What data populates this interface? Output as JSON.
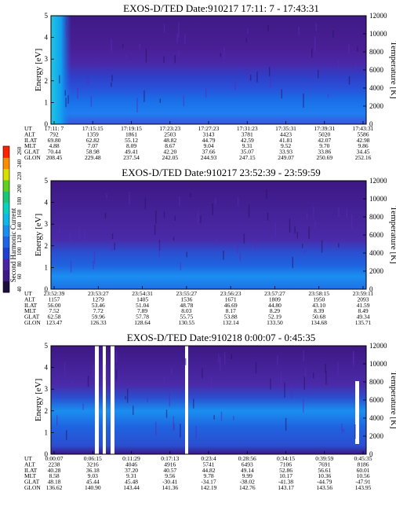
{
  "colorbar": {
    "label": "Second Harmonic Current",
    "ticks": [
      "40",
      "60",
      "80",
      "100",
      "120",
      "140",
      "160",
      "180",
      "200",
      "220",
      "240",
      "260"
    ],
    "colors": [
      "#1a0e3a",
      "#3b1a85",
      "#4a23a8",
      "#1f3fd1",
      "#1f63e8",
      "#1a8ff0",
      "#10b8e8",
      "#0ad1c0",
      "#18c878",
      "#5fd020",
      "#d8e000",
      "#ff8c00",
      "#ff2000"
    ]
  },
  "chart_data": [
    {
      "type": "heatmap",
      "title": "EXOS-D/TED   Date:910217  17:11: 7 - 17:43:31",
      "ylabel": "Energy [eV]",
      "y2label": "Temperature [K]",
      "ylim": [
        0,
        5
      ],
      "y2lim": [
        0,
        12000
      ],
      "yticks": [
        "0",
        "1",
        "2",
        "3",
        "4",
        "5"
      ],
      "y2ticks": [
        "0",
        "2000",
        "4000",
        "6000",
        "8000",
        "10000",
        "12000"
      ],
      "gaps": [],
      "ephemeris": {
        "row_labels": [
          "UT",
          "ALT",
          "ILAT",
          "MLT",
          "GLAT",
          "GLON"
        ],
        "columns": [
          [
            "17:11: 7",
            "792",
            "69.80",
            "4.88",
            "70.44",
            "208.45"
          ],
          [
            "17:15:15",
            "1359",
            "62.82",
            "7.07",
            "58.98",
            "229.48"
          ],
          [
            "17:19:15",
            "1861",
            "55.12",
            "8.09",
            "49.41",
            "237.54"
          ],
          [
            "17:23:23",
            "2503",
            "48.82",
            "8.67",
            "42.20",
            "242.05"
          ],
          [
            "17:27:23",
            "3143",
            "44.79",
            "9.04",
            "37.66",
            "244.93"
          ],
          [
            "17:31:23",
            "3781",
            "42.59",
            "9.31",
            "35.07",
            "247.15"
          ],
          [
            "17:35:31",
            "4423",
            "41.81",
            "9.52",
            "33.93",
            "249.07"
          ],
          [
            "17:39:31",
            "5020",
            "42.07",
            "9.70",
            "33.86",
            "250.69"
          ],
          [
            "17:43:31",
            "5586",
            "42.98",
            "9.86",
            "34.45",
            "252.16"
          ]
        ]
      }
    },
    {
      "type": "heatmap",
      "title": "EXOS-D/TED   Date:910217  23:52:39 - 23:59:59",
      "ylabel": "Energy [eV]",
      "y2label": "Temperature [K]",
      "ylim": [
        0,
        5
      ],
      "y2lim": [
        0,
        12000
      ],
      "yticks": [
        "0",
        "1",
        "2",
        "3",
        "4",
        "5"
      ],
      "y2ticks": [
        "0",
        "2000",
        "4000",
        "6000",
        "8000",
        "10000",
        "12000"
      ],
      "gaps": [],
      "ephemeris": {
        "row_labels": [
          "UT",
          "ALT",
          "ILAT",
          "MLT",
          "GLAT",
          "GLON"
        ],
        "columns": [
          [
            "23:52:39",
            "1157",
            "56.00",
            "7.52",
            "62.58",
            "123.47"
          ],
          [
            "23:53:27",
            "1279",
            "53.46",
            "7.72",
            "59.96",
            "126.33"
          ],
          [
            "23:54:31",
            "1405",
            "51.04",
            "7.89",
            "57.78",
            "128.64"
          ],
          [
            "23:55:27",
            "1536",
            "48.78",
            "8.03",
            "55.75",
            "130.55"
          ],
          [
            "23:56:23",
            "1671",
            "46.69",
            "8.17",
            "53.88",
            "132.14"
          ],
          [
            "23:57:27",
            "1809",
            "44.80",
            "8.29",
            "52.19",
            "133.50"
          ],
          [
            "23:58:15",
            "1950",
            "43.10",
            "8.39",
            "50.68",
            "134.68"
          ],
          [
            "23:59:11",
            "2093",
            "41.59",
            "8.49",
            "49.34",
            "135.71"
          ]
        ]
      }
    },
    {
      "type": "heatmap",
      "title": "EXOS-D/TED   Date:910218  0:00:07 - 0:45:35",
      "ylabel": "Energy [eV]",
      "y2label": "Temperature [K]",
      "ylim": [
        0,
        5
      ],
      "y2lim": [
        0,
        12000
      ],
      "yticks": [
        "0",
        "1",
        "2",
        "3",
        "4",
        "5"
      ],
      "y2ticks": [
        "0",
        "2000",
        "4000",
        "6000",
        "8000",
        "10000",
        "12000"
      ],
      "gaps": [],
      "ephemeris": {
        "row_labels": [
          "UT",
          "ALT",
          "ILAT",
          "MLT",
          "GLAT",
          "GLON"
        ],
        "columns": [
          [
            "0:00:07",
            "2238",
            "40.28",
            "8.58",
            "48.18",
            "136.62"
          ],
          [
            "0:06:15",
            "3216",
            "36.18",
            "9.03",
            "45.44",
            "140.90"
          ],
          [
            "0:11:29",
            "4046",
            "37.20",
            "9.31",
            "45.48",
            "143.44"
          ],
          [
            "0:17:13",
            "4916",
            "40.57",
            "9.56",
            "-30.41",
            "141.36"
          ],
          [
            "0:23:4",
            "5741",
            "44.82",
            "9.78",
            "-34.17",
            "142.19"
          ],
          [
            "0:28:56",
            "6493",
            "49.14",
            "9.99",
            "-38.02",
            "142.76"
          ],
          [
            "0:34:15",
            "7106",
            "52.86",
            "10.17",
            "-41.38",
            "143.17"
          ],
          [
            "0:39:59",
            "7691",
            "56.61",
            "10.36",
            "-44.79",
            "143.56"
          ],
          [
            "0:45:35",
            "8186",
            "60.01",
            "10.56",
            "-47.91",
            "143.95"
          ]
        ]
      }
    }
  ]
}
